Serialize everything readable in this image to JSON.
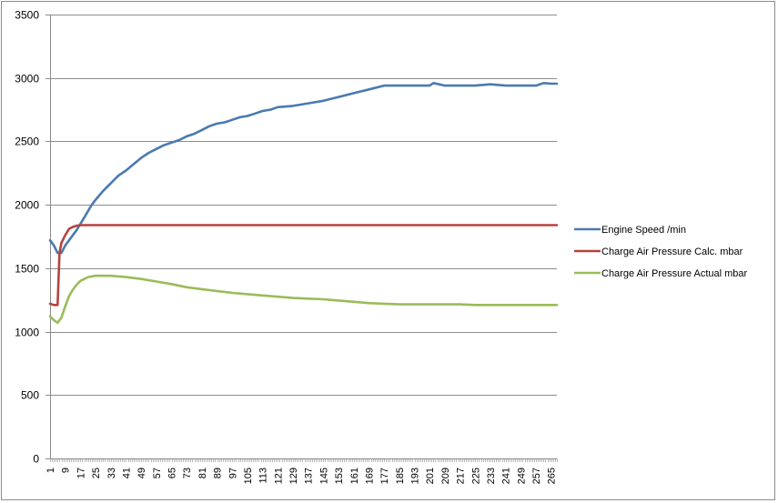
{
  "chart_data": {
    "type": "line",
    "title": "",
    "xlabel": "",
    "ylabel": "",
    "ylim": [
      0,
      3500
    ],
    "yticks": [
      0,
      500,
      1000,
      1500,
      2000,
      2500,
      3000,
      3500
    ],
    "x_tick_labels": [
      "1",
      "9",
      "17",
      "25",
      "33",
      "41",
      "49",
      "57",
      "65",
      "73",
      "81",
      "89",
      "97",
      "105",
      "113",
      "121",
      "129",
      "137",
      "145",
      "153",
      "161",
      "169",
      "177",
      "185",
      "193",
      "201",
      "209",
      "217",
      "225",
      "233",
      "241",
      "249",
      "257",
      "265"
    ],
    "x_range": [
      1,
      268
    ],
    "grid": "horizontal",
    "legend_position": "right",
    "series": [
      {
        "name": "Engine Speed  /min",
        "color": "#4a7ab0",
        "x": [
          1,
          3,
          5,
          7,
          9,
          11,
          13,
          15,
          17,
          19,
          21,
          23,
          25,
          29,
          33,
          37,
          41,
          45,
          49,
          53,
          57,
          61,
          65,
          69,
          73,
          77,
          81,
          85,
          89,
          93,
          97,
          101,
          105,
          109,
          113,
          117,
          121,
          129,
          137,
          145,
          153,
          161,
          169,
          177,
          185,
          193,
          201,
          203,
          209,
          217,
          225,
          233,
          241,
          249,
          257,
          261,
          265,
          268
        ],
        "values": [
          1720,
          1680,
          1620,
          1620,
          1680,
          1720,
          1760,
          1800,
          1850,
          1900,
          1950,
          2000,
          2040,
          2110,
          2170,
          2230,
          2270,
          2320,
          2370,
          2410,
          2440,
          2470,
          2490,
          2510,
          2540,
          2560,
          2590,
          2620,
          2640,
          2650,
          2670,
          2690,
          2700,
          2720,
          2740,
          2750,
          2770,
          2780,
          2800,
          2820,
          2850,
          2880,
          2910,
          2940,
          2940,
          2940,
          2940,
          2960,
          2940,
          2940,
          2940,
          2950,
          2940,
          2940,
          2940,
          2960,
          2955,
          2955
        ]
      },
      {
        "name": "Charge Air Pressure Calc.  mbar",
        "color": "#b5443f",
        "x": [
          1,
          3,
          5,
          6,
          7,
          9,
          11,
          13,
          15,
          17,
          21,
          41,
          81,
          121,
          161,
          201,
          241,
          268
        ],
        "values": [
          1220,
          1210,
          1210,
          1620,
          1700,
          1760,
          1810,
          1825,
          1835,
          1840,
          1840,
          1840,
          1840,
          1840,
          1840,
          1840,
          1840,
          1840
        ]
      },
      {
        "name": "Charge Air Pressure Actual  mbar",
        "color": "#9bbb59",
        "x": [
          1,
          3,
          5,
          7,
          9,
          11,
          13,
          15,
          17,
          19,
          21,
          25,
          29,
          33,
          41,
          49,
          57,
          65,
          73,
          81,
          89,
          97,
          105,
          113,
          121,
          129,
          137,
          145,
          153,
          161,
          169,
          177,
          185,
          193,
          201,
          209,
          217,
          225,
          233,
          241,
          249,
          257,
          265,
          268
        ],
        "values": [
          1120,
          1090,
          1070,
          1110,
          1200,
          1280,
          1330,
          1370,
          1400,
          1415,
          1430,
          1440,
          1440,
          1440,
          1430,
          1415,
          1395,
          1375,
          1350,
          1335,
          1320,
          1305,
          1295,
          1285,
          1275,
          1265,
          1260,
          1255,
          1245,
          1235,
          1225,
          1220,
          1215,
          1215,
          1215,
          1215,
          1215,
          1210,
          1210,
          1210,
          1210,
          1210,
          1210,
          1210
        ]
      }
    ]
  }
}
